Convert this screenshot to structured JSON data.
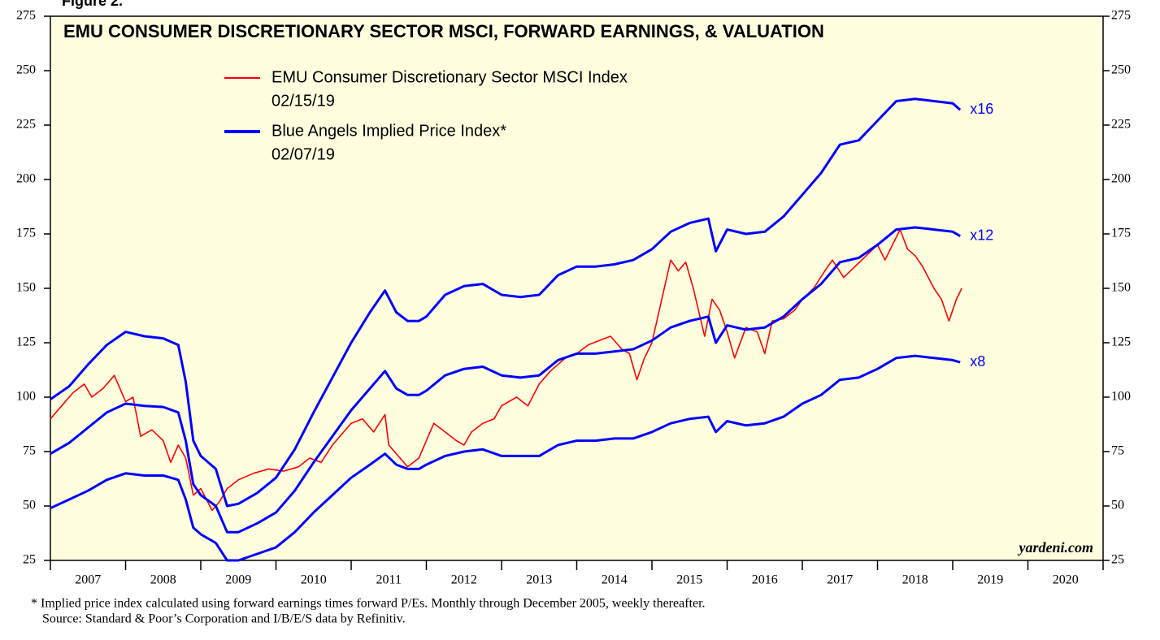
{
  "chart_data": {
    "type": "line",
    "figure_label": "Figure 2.",
    "title": "EMU CONSUMER DISCRETIONARY SECTOR MSCI, FORWARD EARNINGS, & VALUATION",
    "watermark": "yardeni.com",
    "footnotes": [
      "*  Implied price index calculated using forward earnings times forward P/Es. Monthly through December 2005, weekly thereafter.",
      "Source: Standard & Poor’s Corporation and I/B/E/S data by Refinitiv."
    ],
    "xlim": [
      2007,
      2021
    ],
    "xticks": [
      {
        "value": 2007.5,
        "label": "2007"
      },
      {
        "value": 2008.5,
        "label": "2008"
      },
      {
        "value": 2009.5,
        "label": "2009"
      },
      {
        "value": 2010.5,
        "label": "2010"
      },
      {
        "value": 2011.5,
        "label": "2011"
      },
      {
        "value": 2012.5,
        "label": "2012"
      },
      {
        "value": 2013.5,
        "label": "2013"
      },
      {
        "value": 2014.5,
        "label": "2014"
      },
      {
        "value": 2015.5,
        "label": "2015"
      },
      {
        "value": 2016.5,
        "label": "2016"
      },
      {
        "value": 2017.5,
        "label": "2017"
      },
      {
        "value": 2018.5,
        "label": "2018"
      },
      {
        "value": 2019.5,
        "label": "2019"
      },
      {
        "value": 2020.5,
        "label": "2020"
      }
    ],
    "x_boundaries": [
      2007,
      2008,
      2009,
      2010,
      2011,
      2012,
      2013,
      2014,
      2015,
      2016,
      2017,
      2018,
      2019,
      2020,
      2021
    ],
    "ylim": [
      25,
      275
    ],
    "yticks": [
      25,
      50,
      75,
      100,
      125,
      150,
      175,
      200,
      225,
      250,
      275
    ],
    "y2lim": [
      25,
      275
    ],
    "y2ticks": [
      25,
      50,
      75,
      100,
      125,
      150,
      175,
      200,
      225,
      250,
      275
    ],
    "series": [
      {
        "name": "EMU Consumer Discretionary Sector MSCI Index",
        "date": "02/15/19",
        "color": "#ff0000",
        "x": [
          2007.0,
          2007.15,
          2007.3,
          2007.45,
          2007.55,
          2007.7,
          2007.85,
          2008.0,
          2008.1,
          2008.2,
          2008.35,
          2008.5,
          2008.6,
          2008.7,
          2008.8,
          2008.9,
          2009.0,
          2009.15,
          2009.25,
          2009.35,
          2009.5,
          2009.7,
          2009.9,
          2010.1,
          2010.3,
          2010.45,
          2010.6,
          2010.75,
          2010.9,
          2011.0,
          2011.15,
          2011.3,
          2011.45,
          2011.5,
          2011.65,
          2011.75,
          2011.9,
          2012.0,
          2012.1,
          2012.25,
          2012.4,
          2012.5,
          2012.6,
          2012.75,
          2012.9,
          2013.0,
          2013.2,
          2013.35,
          2013.5,
          2013.65,
          2013.85,
          2014.0,
          2014.15,
          2014.3,
          2014.45,
          2014.6,
          2014.7,
          2014.8,
          2014.9,
          2015.0,
          2015.15,
          2015.25,
          2015.35,
          2015.45,
          2015.55,
          2015.7,
          2015.8,
          2015.9,
          2016.0,
          2016.1,
          2016.25,
          2016.4,
          2016.5,
          2016.6,
          2016.75,
          2016.9,
          2017.0,
          2017.15,
          2017.3,
          2017.4,
          2017.55,
          2017.7,
          2017.85,
          2018.0,
          2018.1,
          2018.2,
          2018.3,
          2018.4,
          2018.5,
          2018.6,
          2018.75,
          2018.85,
          2018.95,
          2019.05,
          2019.12
        ],
        "values": [
          90,
          96,
          102,
          106,
          100,
          104,
          110,
          98,
          100,
          82,
          85,
          80,
          70,
          78,
          72,
          55,
          58,
          48,
          52,
          58,
          62,
          65,
          67,
          66,
          68,
          72,
          70,
          78,
          84,
          88,
          90,
          84,
          92,
          78,
          72,
          68,
          72,
          80,
          88,
          84,
          80,
          78,
          84,
          88,
          90,
          96,
          100,
          96,
          106,
          112,
          118,
          120,
          124,
          126,
          128,
          122,
          120,
          108,
          118,
          125,
          148,
          163,
          158,
          162,
          150,
          128,
          145,
          140,
          130,
          118,
          132,
          130,
          120,
          135,
          136,
          140,
          145,
          150,
          158,
          163,
          155,
          160,
          165,
          170,
          163,
          170,
          177,
          168,
          165,
          160,
          150,
          145,
          135,
          145,
          150
        ]
      },
      {
        "name": "Blue Angels Implied Price Index*",
        "date": "02/07/19",
        "label": "x16",
        "color": "#0000ff",
        "x": [
          2007.0,
          2007.25,
          2007.5,
          2007.75,
          2008.0,
          2008.25,
          2008.5,
          2008.7,
          2008.8,
          2008.9,
          2009.0,
          2009.2,
          2009.35,
          2009.5,
          2009.75,
          2010.0,
          2010.25,
          2010.5,
          2010.75,
          2011.0,
          2011.25,
          2011.45,
          2011.6,
          2011.75,
          2011.9,
          2012.0,
          2012.25,
          2012.5,
          2012.75,
          2013.0,
          2013.25,
          2013.5,
          2013.75,
          2014.0,
          2014.25,
          2014.5,
          2014.75,
          2015.0,
          2015.25,
          2015.5,
          2015.75,
          2015.85,
          2016.0,
          2016.25,
          2016.5,
          2016.75,
          2017.0,
          2017.25,
          2017.5,
          2017.75,
          2018.0,
          2018.25,
          2018.5,
          2018.75,
          2019.0,
          2019.1
        ],
        "values": [
          99,
          105,
          115,
          124,
          130,
          128,
          127,
          124,
          107,
          80,
          73,
          67,
          50,
          51,
          56,
          63,
          76,
          93,
          109,
          125,
          139,
          149,
          139,
          135,
          135,
          137,
          147,
          151,
          152,
          147,
          146,
          147,
          156,
          160,
          160,
          161,
          163,
          168,
          176,
          180,
          182,
          167,
          177,
          175,
          176,
          183,
          193,
          203,
          216,
          218,
          227,
          236,
          237,
          236,
          235,
          232
        ]
      },
      {
        "label": "x12",
        "color": "#0000ff",
        "x": [
          2007.0,
          2007.25,
          2007.5,
          2007.75,
          2008.0,
          2008.25,
          2008.5,
          2008.7,
          2008.8,
          2008.9,
          2009.0,
          2009.2,
          2009.35,
          2009.5,
          2009.75,
          2010.0,
          2010.25,
          2010.5,
          2010.75,
          2011.0,
          2011.25,
          2011.45,
          2011.6,
          2011.75,
          2011.9,
          2012.0,
          2012.25,
          2012.5,
          2012.75,
          2013.0,
          2013.25,
          2013.5,
          2013.75,
          2014.0,
          2014.25,
          2014.5,
          2014.75,
          2015.0,
          2015.25,
          2015.5,
          2015.75,
          2015.85,
          2016.0,
          2016.25,
          2016.5,
          2016.75,
          2017.0,
          2017.25,
          2017.5,
          2017.75,
          2018.0,
          2018.25,
          2018.5,
          2018.75,
          2019.0,
          2019.1
        ],
        "values": [
          74,
          79,
          86,
          93,
          97,
          96,
          95.5,
          93,
          80,
          60,
          55,
          50,
          38,
          38,
          42,
          47,
          57,
          70,
          82,
          94,
          104,
          112,
          104,
          101,
          101,
          103,
          110,
          113,
          114,
          110,
          109,
          110,
          117,
          120,
          120,
          121,
          122,
          126,
          132,
          135,
          137,
          125,
          133,
          131,
          132,
          137,
          145,
          152,
          162,
          164,
          170,
          177,
          178,
          177,
          176,
          174
        ]
      },
      {
        "label": "x8",
        "color": "#0000ff",
        "x": [
          2007.0,
          2007.25,
          2007.5,
          2007.75,
          2008.0,
          2008.25,
          2008.5,
          2008.7,
          2008.8,
          2008.9,
          2009.0,
          2009.2,
          2009.35,
          2009.5,
          2009.75,
          2010.0,
          2010.25,
          2010.5,
          2010.75,
          2011.0,
          2011.25,
          2011.45,
          2011.6,
          2011.75,
          2011.9,
          2012.0,
          2012.25,
          2012.5,
          2012.75,
          2013.0,
          2013.25,
          2013.5,
          2013.75,
          2014.0,
          2014.25,
          2014.5,
          2014.75,
          2015.0,
          2015.25,
          2015.5,
          2015.75,
          2015.85,
          2016.0,
          2016.25,
          2016.5,
          2016.75,
          2017.0,
          2017.25,
          2017.5,
          2017.75,
          2018.0,
          2018.25,
          2018.5,
          2018.75,
          2019.0,
          2019.1
        ],
        "values": [
          49,
          53,
          57,
          62,
          65,
          64,
          64,
          62,
          53,
          40,
          37,
          33,
          25,
          25,
          28,
          31,
          38,
          47,
          55,
          63,
          69,
          74,
          69,
          67,
          67,
          69,
          73,
          75,
          76,
          73,
          73,
          73,
          78,
          80,
          80,
          81,
          81,
          84,
          88,
          90,
          91,
          84,
          89,
          87,
          88,
          91,
          97,
          101,
          108,
          109,
          113,
          118,
          119,
          118,
          117,
          116
        ]
      }
    ]
  }
}
